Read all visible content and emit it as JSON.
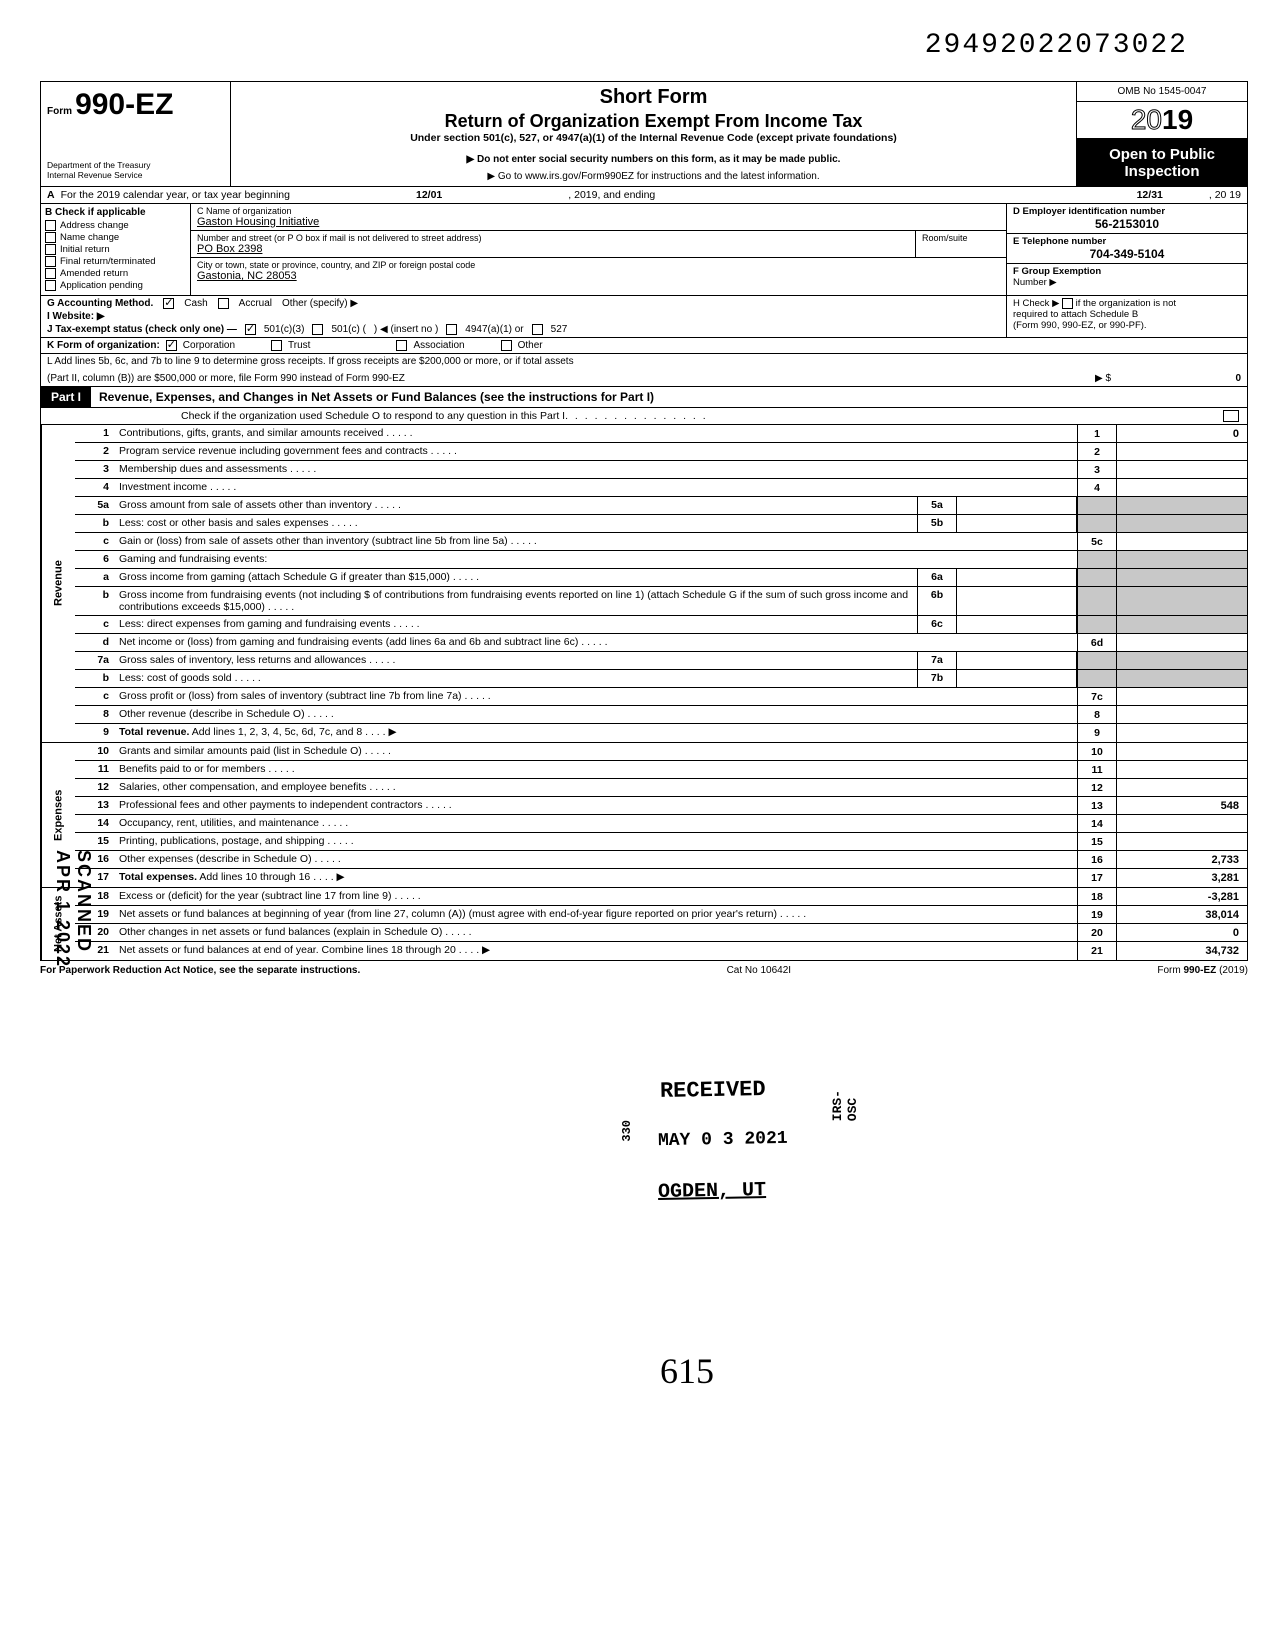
{
  "top_stamp_number": "29492022073022",
  "side_stamp": "SCANNED APR 1 2022",
  "header": {
    "form_prefix": "Form",
    "form_number": "990-EZ",
    "dept1": "Department of the Treasury",
    "dept2": "Internal Revenue Service",
    "title1": "Short Form",
    "title2": "Return of Organization Exempt From Income Tax",
    "title3": "Under section 501(c), 527, or 4947(a)(1) of the Internal Revenue Code (except private foundations)",
    "title4": "▶ Do not enter social security numbers on this form, as it may be made public.",
    "title5": "▶ Go to www.irs.gov/Form990EZ for instructions and the latest information.",
    "omb": "OMB No 1545-0047",
    "year_outline": "20",
    "year_bold": "19",
    "otpi1": "Open to Public",
    "otpi2": "Inspection"
  },
  "rowA": {
    "lead": "A",
    "text": "For the 2019 calendar year, or tax year beginning",
    "begin": "12/01",
    "mid": ", 2019, and ending",
    "end_m": "12/31",
    "end_y": ", 20   19"
  },
  "colB": {
    "header": "B  Check if applicable",
    "items": [
      "Address change",
      "Name change",
      "Initial return",
      "Final return/terminated",
      "Amended return",
      "Application pending"
    ]
  },
  "colC": {
    "c_label": "C  Name of organization",
    "c_value": "Gaston Housing Initiative",
    "addr_label": "Number and street (or P O  box if mail is not delivered to street address)",
    "room_label": "Room/suite",
    "addr_value": "PO Box 2398",
    "city_label": "City or town, state or province, country, and ZIP or foreign postal code",
    "city_value": "Gastonia, NC 28053"
  },
  "colD": {
    "d_label": "D Employer identification number",
    "d_value": "56-2153010",
    "e_label": "E Telephone number",
    "e_value": "704-349-5104",
    "f_label1": "F Group Exemption",
    "f_label2": "Number ▶"
  },
  "rowG": {
    "g": "G  Accounting Method.",
    "cash": "Cash",
    "accrual": "Accrual",
    "other": "Other (specify) ▶",
    "h1": "H  Check ▶",
    "h2": "if the organization is not",
    "h3": "required to attach Schedule B",
    "h4": "(Form 990, 990-EZ, or 990-PF)."
  },
  "rowI": "I   Website: ▶",
  "rowJ": {
    "lead": "J  Tax-exempt status (check only one) —",
    "a": "501(c)(3)",
    "b": "501(c) (",
    "c": ") ◀ (insert no )",
    "d": "4947(a)(1) or",
    "e": "527"
  },
  "rowK": {
    "lead": "K  Form of organization:",
    "a": "Corporation",
    "b": "Trust",
    "c": "Association",
    "d": "Other"
  },
  "rowL": {
    "l1": "L  Add lines 5b, 6c, and 7b to line 9 to determine gross receipts. If gross receipts are $200,000 or more, or if total assets",
    "l2": "(Part II, column (B)) are $500,000 or more, file Form 990 instead of Form 990-EZ",
    "arrow": "▶  $",
    "val": "0"
  },
  "part1": {
    "tag": "Part I",
    "title": "Revenue, Expenses, and Changes in Net Assets or Fund Balances (see the instructions for Part I)",
    "sub": "Check if the organization used Schedule O to respond to any question in this Part I"
  },
  "sections": {
    "revenue": "Revenue",
    "expenses": "Expenses",
    "netassets": "Net Assets"
  },
  "lines": [
    {
      "n": "1",
      "d": "Contributions, gifts, grants, and similar amounts received",
      "r": "1",
      "v": "0"
    },
    {
      "n": "2",
      "d": "Program service revenue including government fees and contracts",
      "r": "2",
      "v": ""
    },
    {
      "n": "3",
      "d": "Membership dues and assessments",
      "r": "3",
      "v": ""
    },
    {
      "n": "4",
      "d": "Investment income",
      "r": "4",
      "v": ""
    },
    {
      "n": "5a",
      "d": "Gross amount from sale of assets other than inventory",
      "mid": "5a"
    },
    {
      "n": "b",
      "d": "Less: cost or other basis and sales expenses",
      "mid": "5b"
    },
    {
      "n": "c",
      "d": "Gain or (loss) from sale of assets other than inventory (subtract line 5b from line 5a)",
      "r": "5c",
      "v": ""
    },
    {
      "n": "6",
      "d": "Gaming and fundraising events:"
    },
    {
      "n": "a",
      "d": "Gross income from gaming (attach Schedule G if greater than $15,000)",
      "mid": "6a"
    },
    {
      "n": "b",
      "d": "Gross income from fundraising events (not including  $                        of contributions from fundraising events reported on line 1) (attach Schedule G if the sum of such gross income and contributions exceeds $15,000)",
      "mid": "6b"
    },
    {
      "n": "c",
      "d": "Less: direct expenses from gaming and fundraising events",
      "mid": "6c"
    },
    {
      "n": "d",
      "d": "Net income or (loss) from gaming and fundraising events (add lines 6a and 6b and subtract line 6c)",
      "r": "6d",
      "v": ""
    },
    {
      "n": "7a",
      "d": "Gross sales of inventory, less returns and allowances",
      "mid": "7a"
    },
    {
      "n": "b",
      "d": "Less: cost of goods sold",
      "mid": "7b"
    },
    {
      "n": "c",
      "d": "Gross profit or (loss) from sales of inventory (subtract line 7b from line 7a)",
      "r": "7c",
      "v": ""
    },
    {
      "n": "8",
      "d": "Other revenue (describe in Schedule O)",
      "r": "8",
      "v": ""
    },
    {
      "n": "9",
      "d": "Total revenue. Add lines 1, 2, 3, 4, 5c, 6d, 7c, and 8",
      "r": "9",
      "v": "",
      "arrow": true,
      "bold": true
    }
  ],
  "exp_lines": [
    {
      "n": "10",
      "d": "Grants and similar amounts paid (list in Schedule O)",
      "r": "10",
      "v": ""
    },
    {
      "n": "11",
      "d": "Benefits paid to or for members",
      "r": "11",
      "v": ""
    },
    {
      "n": "12",
      "d": "Salaries, other compensation, and employee benefits",
      "r": "12",
      "v": ""
    },
    {
      "n": "13",
      "d": "Professional fees and other payments to independent contractors",
      "r": "13",
      "v": "548"
    },
    {
      "n": "14",
      "d": "Occupancy, rent, utilities, and maintenance",
      "r": "14",
      "v": ""
    },
    {
      "n": "15",
      "d": "Printing, publications, postage, and shipping",
      "r": "15",
      "v": ""
    },
    {
      "n": "16",
      "d": "Other expenses (describe in Schedule O)",
      "r": "16",
      "v": "2,733"
    },
    {
      "n": "17",
      "d": "Total expenses. Add lines 10 through 16",
      "r": "17",
      "v": "3,281",
      "arrow": true,
      "bold": true
    }
  ],
  "na_lines": [
    {
      "n": "18",
      "d": "Excess or (deficit) for the year (subtract line 17 from line 9)",
      "r": "18",
      "v": "-3,281"
    },
    {
      "n": "19",
      "d": "Net assets or fund balances at beginning of year (from line 27, column (A)) (must agree with end-of-year figure reported on prior year's return)",
      "r": "19",
      "v": "38,014"
    },
    {
      "n": "20",
      "d": "Other changes in net assets or fund balances (explain in Schedule O)",
      "r": "20",
      "v": "0"
    },
    {
      "n": "21",
      "d": "Net assets or fund balances at end of year. Combine lines 18 through 20",
      "r": "21",
      "v": "34,732",
      "arrow": true
    }
  ],
  "footer": {
    "left": "For Paperwork Reduction Act Notice, see the separate instructions.",
    "mid": "Cat No 10642I",
    "right": "Form 990-EZ (2019)"
  },
  "stamps": {
    "received": "RECEIVED",
    "date": "MAY 0 3 2021",
    "ogden": "OGDEN, UT",
    "irs": "IRS-OSC",
    "p330": "330"
  },
  "handwritten": "615"
}
